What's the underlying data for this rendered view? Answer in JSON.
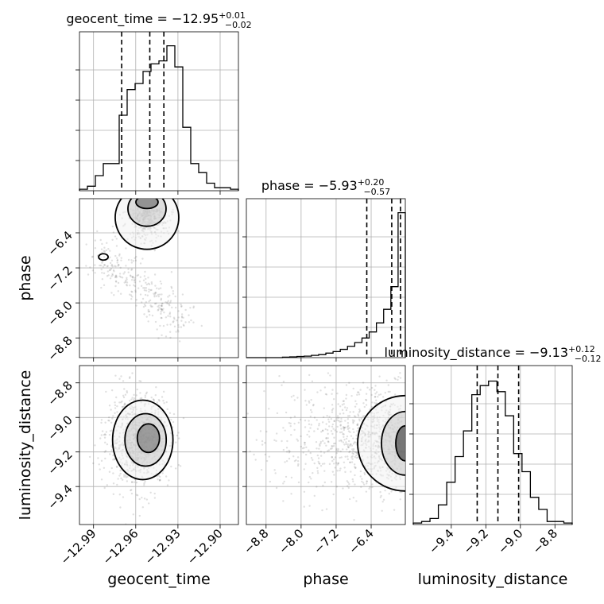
{
  "chart_data": {
    "type": "corner",
    "parameters": [
      "geocent_time",
      "phase",
      "luminosity_distance"
    ],
    "titles": {
      "geocent_time": {
        "prefix": "geocent_time = ",
        "median": "−12.95",
        "plus": "+0.01",
        "minus": "−0.02"
      },
      "phase": {
        "prefix": "phase = ",
        "median": "−5.93",
        "plus": "+0.20",
        "minus": "−0.57"
      },
      "luminosity_distance": {
        "prefix": "luminosity_distance = ",
        "median": "−9.13",
        "plus": "+0.12",
        "minus": "−0.12"
      }
    },
    "axis_labels": {
      "geocent_time": "geocent_time",
      "phase": "phase",
      "luminosity_distance": "luminosity_distance"
    },
    "ranges": {
      "geocent_time": [
        -13.0,
        -12.887
      ],
      "phase": [
        -9.25,
        -5.62
      ],
      "luminosity_distance": [
        -9.62,
        -8.7
      ]
    },
    "ticks": {
      "geocent_time": {
        "values": [
          -12.99,
          -12.96,
          -12.93,
          -12.9
        ],
        "labels": [
          "−12.99",
          "−12.96",
          "−12.93",
          "−12.90"
        ]
      },
      "phase": {
        "values": [
          -8.8,
          -8.0,
          -7.2,
          -6.4
        ],
        "labels": [
          "−8.8",
          "−8.0",
          "−7.2",
          "−6.4"
        ]
      },
      "luminosity_distance": {
        "values": [
          -9.4,
          -9.2,
          -9.0,
          -8.8
        ],
        "labels": [
          "−9.4",
          "−9.2",
          "−9.0",
          "−8.8"
        ]
      }
    },
    "quantiles": {
      "geocent_time": [
        -12.97,
        -12.95,
        -12.94
      ],
      "phase": [
        -6.5,
        -5.93,
        -5.73
      ],
      "luminosity_distance": [
        -9.25,
        -9.13,
        -9.01
      ]
    },
    "histograms": {
      "geocent_time": [
        0.01,
        0.03,
        0.1,
        0.18,
        0.18,
        0.5,
        0.67,
        0.71,
        0.79,
        0.84,
        0.86,
        0.96,
        0.82,
        0.42,
        0.18,
        0.12,
        0.05,
        0.02,
        0.02,
        0.01
      ],
      "phase": [
        0,
        0,
        0,
        0,
        0,
        0.003,
        0.005,
        0.008,
        0.01,
        0.015,
        0.02,
        0.03,
        0.04,
        0.055,
        0.075,
        0.1,
        0.13,
        0.17,
        0.23,
        0.32,
        0.47,
        0.96
      ],
      "luminosity_distance": [
        0.01,
        0.02,
        0.04,
        0.13,
        0.28,
        0.45,
        0.62,
        0.86,
        0.92,
        0.95,
        0.88,
        0.72,
        0.47,
        0.35,
        0.18,
        0.1,
        0.02,
        0.02,
        0.01
      ]
    },
    "histogram_ylim": [
      0,
      1.0
    ],
    "grid": true
  }
}
